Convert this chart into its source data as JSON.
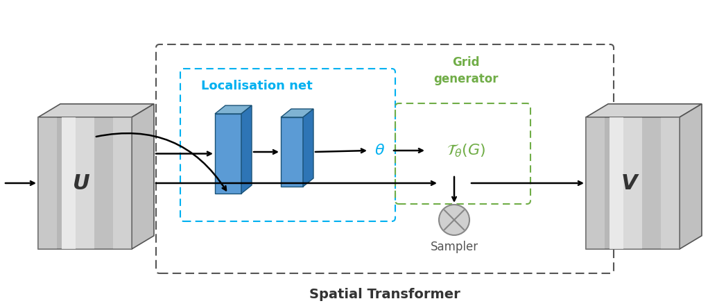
{
  "bg_color": "#ffffff",
  "title": "Spatial Transformer",
  "title_fontsize": 14,
  "U_label": "U",
  "V_label": "V",
  "theta_label": "θ",
  "T_theta_label": "Τ_θ(G)",
  "localisation_label": "Localisation net",
  "grid_gen_label": "Grid\ngenerator",
  "sampler_label": "Sampler",
  "blue_color": "#5b9bd5",
  "blue_dark": "#2e75b6",
  "green_color": "#70ad47",
  "cyan_color": "#00b0f0",
  "gray_color": "#808080",
  "light_gray": "#d9d9d9",
  "arrow_color": "#000000"
}
